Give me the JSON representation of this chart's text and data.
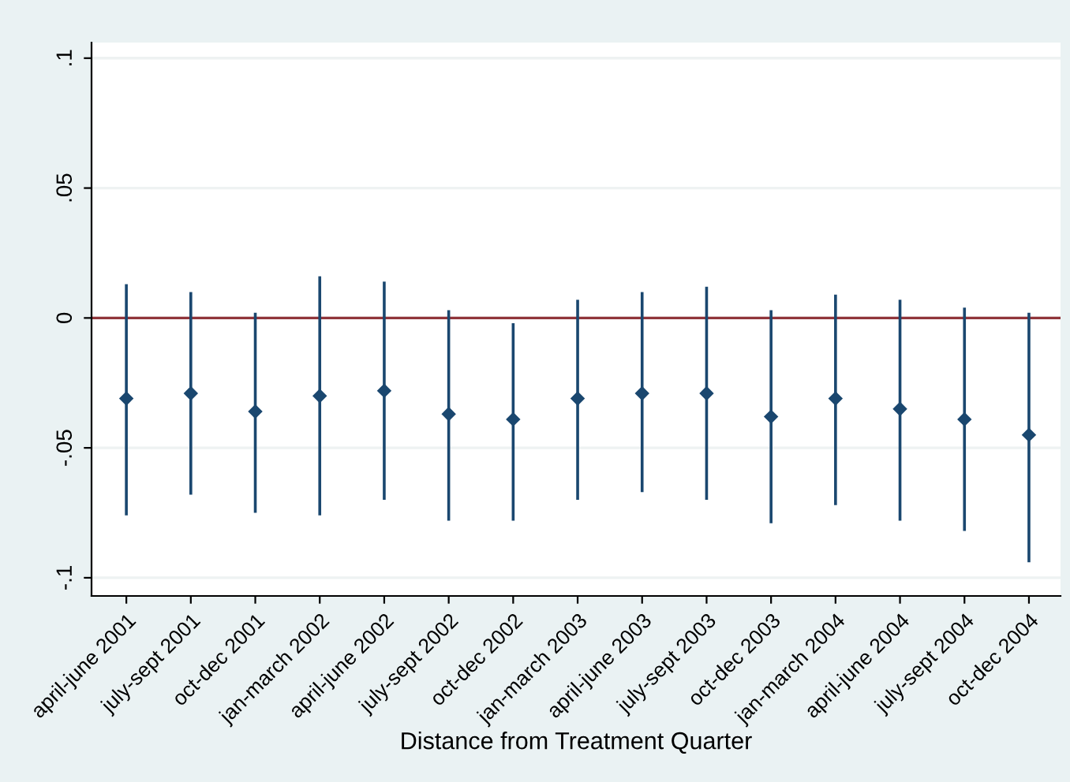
{
  "chart_data": {
    "type": "scatter",
    "xlabel": "Distance from Treatment Quarter",
    "categories": [
      "april-june 2001",
      "july-sept 2001",
      "oct-dec 2001",
      "jan-march 2002",
      "april-june 2002",
      "july-sept 2002",
      "oct-dec 2002",
      "jan-march 2003",
      "april-june 2003",
      "july-sept 2003",
      "oct-dec 2003",
      "jan-march 2004",
      "april-june 2004",
      "july-sept 2004",
      "oct-dec 2004"
    ],
    "values": [
      -0.031,
      -0.029,
      -0.036,
      -0.03,
      -0.028,
      -0.037,
      -0.039,
      -0.031,
      -0.029,
      -0.029,
      -0.038,
      -0.031,
      -0.035,
      -0.039,
      -0.045
    ],
    "errors": [
      [
        -0.076,
        0.013
      ],
      [
        -0.068,
        0.01
      ],
      [
        -0.075,
        0.002
      ],
      [
        -0.076,
        0.016
      ],
      [
        -0.07,
        0.014
      ],
      [
        -0.078,
        0.003
      ],
      [
        -0.078,
        -0.002
      ],
      [
        -0.07,
        0.007
      ],
      [
        -0.067,
        0.01
      ],
      [
        -0.07,
        0.012
      ],
      [
        -0.079,
        0.003
      ],
      [
        -0.072,
        0.009
      ],
      [
        -0.078,
        0.007
      ],
      [
        -0.082,
        0.004
      ],
      [
        -0.094,
        0.002
      ]
    ],
    "color": "#1a476f",
    "marker": "diamond",
    "ylim": [
      -0.107,
      0.106
    ],
    "yticks": [
      {
        "value": -0.1,
        "label": "-.1"
      },
      {
        "value": -0.05,
        "label": "-.05"
      },
      0,
      {
        "value": 0.05,
        "label": ".05"
      },
      {
        "value": 0.1,
        "label": ".1"
      }
    ],
    "grid": "y",
    "ref_lines": [
      {
        "axis": "y",
        "value": 0,
        "color": "#90353b"
      }
    ]
  }
}
